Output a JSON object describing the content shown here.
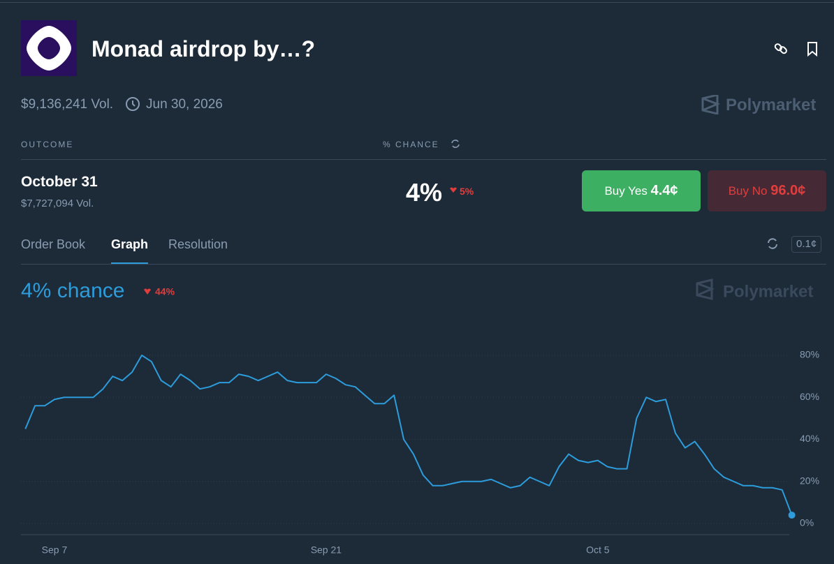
{
  "header": {
    "title": "Monad airdrop by…?",
    "volume": "$9,136,241 Vol.",
    "end_date": "Jun 30, 2026",
    "brand": "Polymarket"
  },
  "table": {
    "columns": [
      "OUTCOME",
      "% CHANCE"
    ],
    "rows": [
      {
        "name": "October 31",
        "volume": "$7,727,094 Vol.",
        "chance": "4%",
        "change": "5%",
        "buy_yes": "Buy Yes",
        "yes_price": "4.4¢",
        "buy_no": "Buy No",
        "no_price": "96.0¢"
      }
    ]
  },
  "tabs": [
    "Order Book",
    "Graph",
    "Resolution"
  ],
  "precision": "0.1¢",
  "chart_data": {
    "type": "line",
    "title": "4% chance",
    "change": "44%",
    "brand": "Polymarket",
    "color": "#2d9cdb",
    "grid": true,
    "categories": [
      null,
      null,
      null,
      "Sep 7",
      null,
      null,
      null,
      null,
      null,
      null,
      null,
      null,
      null,
      null,
      null,
      null,
      null,
      null,
      null,
      null,
      null,
      null,
      null,
      null,
      null,
      null,
      null,
      null,
      null,
      null,
      null,
      "Sep 21",
      null,
      null,
      null,
      null,
      null,
      null,
      null,
      null,
      null,
      null,
      null,
      null,
      null,
      null,
      null,
      null,
      null,
      null,
      null,
      null,
      null,
      null,
      null,
      null,
      null,
      null,
      null,
      "Oct 5",
      null,
      null,
      null,
      null,
      null,
      null,
      null,
      null,
      null,
      null,
      null,
      null,
      null,
      null,
      null,
      null,
      null,
      null,
      null,
      null
    ],
    "values": [
      45,
      56,
      56,
      59,
      60,
      60,
      60,
      60,
      64,
      70,
      68,
      72,
      80,
      77,
      68,
      65,
      71,
      68,
      64,
      65,
      67,
      67,
      71,
      70,
      68,
      70,
      72,
      68,
      67,
      67,
      67,
      71,
      69,
      66,
      65,
      61,
      57,
      57,
      61,
      40,
      33,
      23,
      18,
      18,
      19,
      20,
      20,
      20,
      21,
      19,
      17,
      18,
      22,
      20,
      18,
      27,
      33,
      30,
      29,
      30,
      27,
      26,
      26,
      50,
      60,
      58,
      59,
      43,
      36,
      39,
      33,
      26,
      22,
      20,
      18,
      18,
      17,
      17,
      16,
      4
    ],
    "ylim": [
      0,
      80
    ],
    "yticks": [
      {
        "value": 0,
        "label": "0%"
      },
      {
        "value": 20,
        "label": "20%"
      },
      {
        "value": 40,
        "label": "40%"
      },
      {
        "value": 60,
        "label": "60%"
      },
      {
        "value": 80,
        "label": "80%"
      }
    ]
  }
}
